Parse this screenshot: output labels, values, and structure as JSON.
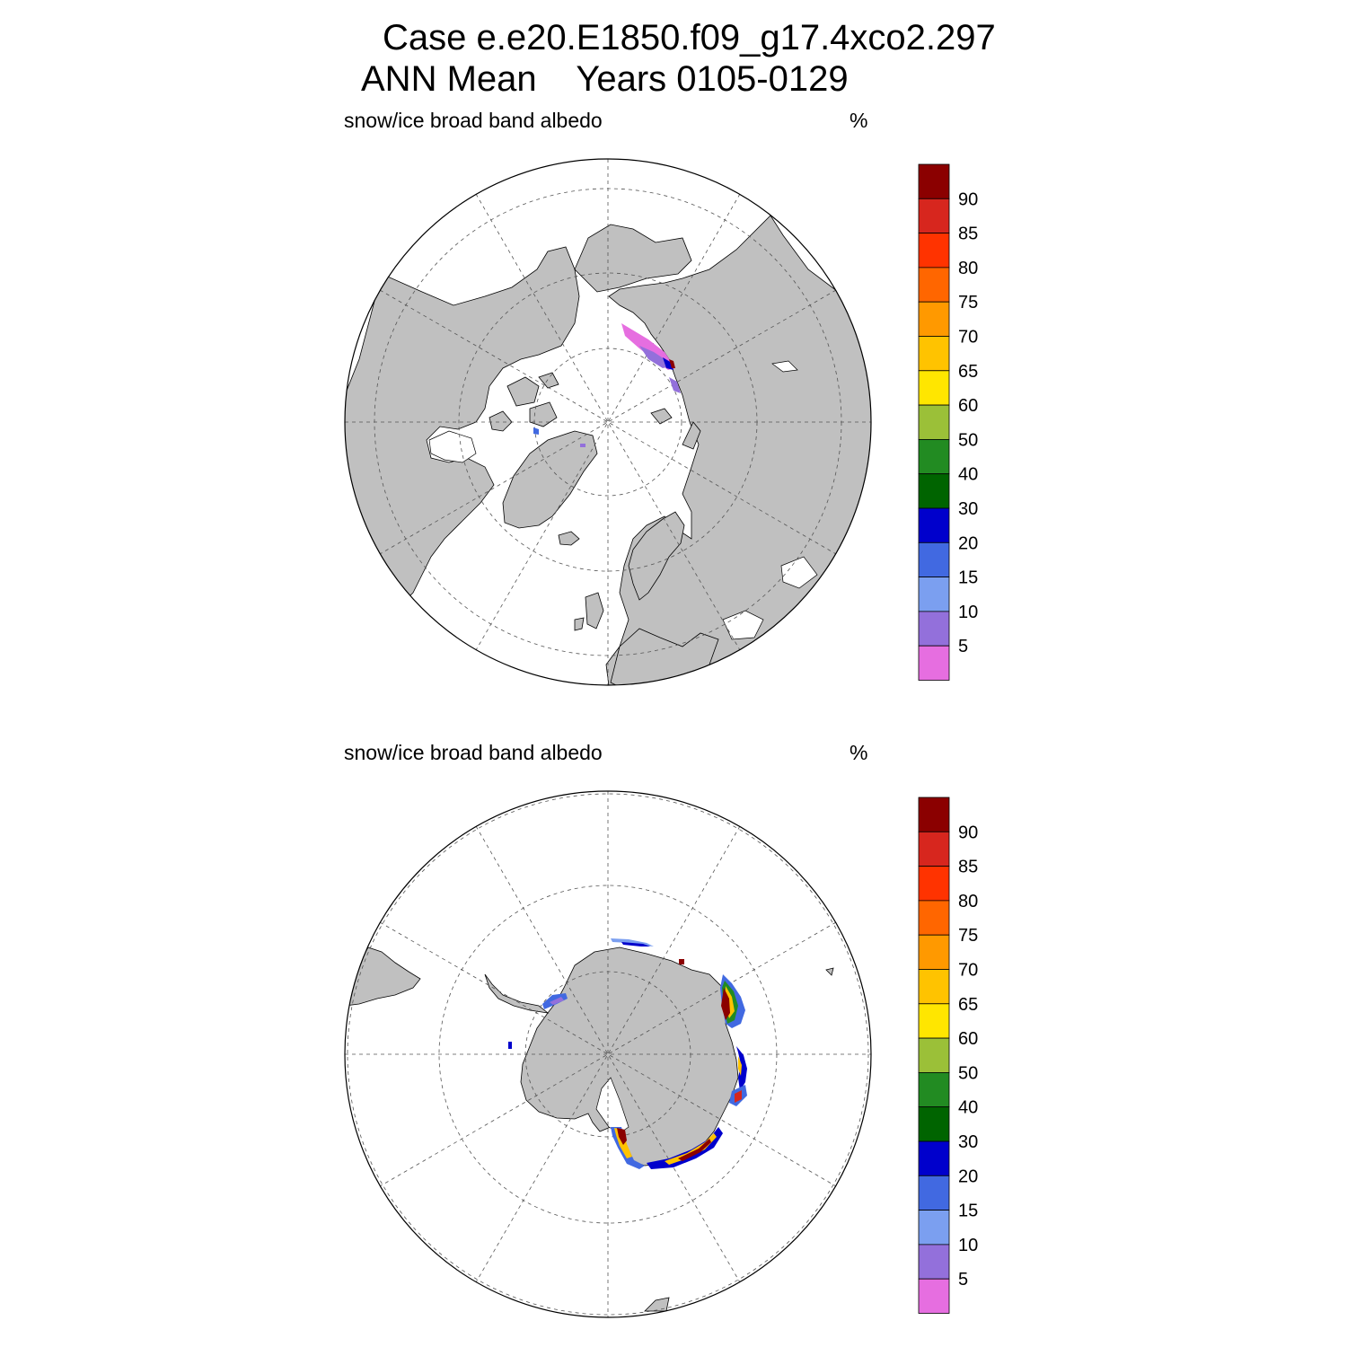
{
  "figure": {
    "title_line1": "Case e.e20.E1850.f09_g17.4xco2.297",
    "title_line2": "ANN Mean    Years 0105-0129"
  },
  "panels": [
    {
      "id": "nh",
      "left_label": "snow/ice broad band albedo",
      "right_label": "%"
    },
    {
      "id": "sh",
      "left_label": "snow/ice broad band albedo",
      "right_label": "%"
    }
  ],
  "colorbar": {
    "labels": [
      "90",
      "85",
      "80",
      "75",
      "70",
      "65",
      "60",
      "50",
      "40",
      "30",
      "20",
      "15",
      "10",
      "5"
    ],
    "colors": [
      "#8b0000",
      "#d7261e",
      "#ff3300",
      "#ff6600",
      "#ff9900",
      "#ffc300",
      "#ffe600",
      "#9bc038",
      "#228b22",
      "#006400",
      "#0000cc",
      "#4169e1",
      "#7b9ff0",
      "#9370db",
      "#e66ee0"
    ]
  },
  "colors": {
    "land": "#c0c0c0",
    "ocean": "#ffffff",
    "grid": "#555555"
  }
}
